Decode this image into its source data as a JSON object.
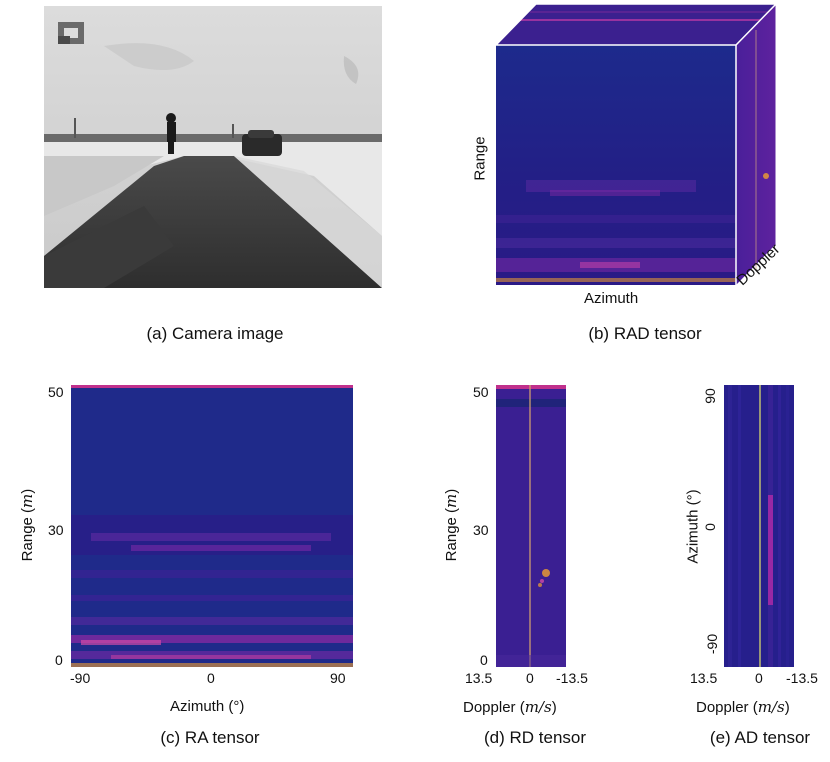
{
  "panels": {
    "a": {
      "caption": "(a)  Camera image"
    },
    "b": {
      "caption": "(b) RAD tensor",
      "axis_range": "Range",
      "axis_azimuth": "Azimuth",
      "axis_doppler": "Doppler"
    },
    "c": {
      "caption": "(c) RA tensor",
      "xlabel": "Azimuth (°)",
      "ylabel_text": "Range (",
      "ylabel_unit": "m",
      "ylabel_close": ")",
      "xticks": [
        "-90",
        "0",
        "90"
      ],
      "yticks": [
        "50",
        "30",
        "0"
      ]
    },
    "d": {
      "caption": "(d) RD tensor",
      "xlabel_text": "Doppler (",
      "xlabel_unit": "m/s",
      "xlabel_close": ")",
      "ylabel_text": "Range (",
      "ylabel_unit": "m",
      "ylabel_close": ")",
      "xticks": [
        "13.5",
        "0",
        "-13.5"
      ],
      "yticks": [
        "50",
        "30",
        "0"
      ]
    },
    "e": {
      "caption": "(e) AD tensor",
      "xlabel_text": "Doppler (",
      "xlabel_unit": "m/s",
      "xlabel_close": ")",
      "ylabel_text": "Azimuth (°)",
      "xticks": [
        "13.5",
        "0",
        "-13.5"
      ],
      "yticks": [
        "90",
        "0",
        "-90"
      ]
    }
  },
  "colors": {
    "heatmap_bg": "#1f1a8a",
    "heatmap_warm": "#b02aa8",
    "heatmap_hot": "#f0a030"
  }
}
